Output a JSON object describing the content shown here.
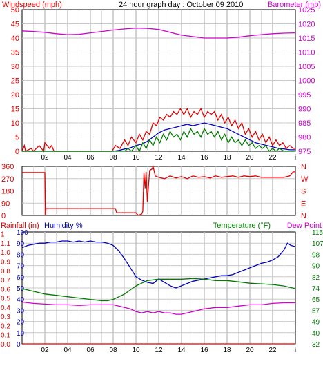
{
  "colors": {
    "red": "#e00000",
    "blue": "#0000c0",
    "green": "#007a00",
    "magenta": "#d000d0",
    "grid": "#c8c8c8",
    "axis": "#000000"
  },
  "chart_data": [
    {
      "type": "line",
      "title": "24 hour graph day : October 09 2010",
      "ylabel_left": "Windspeed (mph)",
      "ylabel_right": "Barometer (mb)",
      "x_ticks": [
        "02",
        "04",
        "06",
        "08",
        "10",
        "12",
        "14",
        "16",
        "18",
        "20",
        "22",
        "i"
      ],
      "xlim": [
        0,
        24
      ],
      "y_left_ticks": [
        "0",
        "5",
        "10",
        "15",
        "20",
        "25",
        "30",
        "35",
        "40",
        "45",
        "50"
      ],
      "ylim_left": [
        0,
        50
      ],
      "y_right_ticks": [
        "975",
        "980",
        "985",
        "990",
        "995",
        "1000",
        "1005",
        "1010",
        "1015",
        "1020",
        "1025"
      ],
      "ylim_right": [
        975,
        1025
      ],
      "grid": true,
      "series": [
        {
          "color": "red",
          "axis": "left",
          "x": [
            0,
            0.2,
            0.3,
            0.8,
            1.0,
            1.5,
            1.9,
            2.0,
            2.4,
            2.6,
            2.8,
            3,
            4,
            5,
            6,
            7,
            7.9,
            8.2,
            8.6,
            9,
            9.3,
            9.6,
            10,
            10.3,
            10.6,
            10.9,
            11.2,
            11.5,
            11.8,
            12.1,
            12.4,
            12.7,
            13,
            13.3,
            13.6,
            13.9,
            14.2,
            14.5,
            14.8,
            15.1,
            15.4,
            15.7,
            16,
            16.3,
            16.6,
            16.9,
            17.2,
            17.5,
            17.8,
            18.1,
            18.4,
            18.7,
            19,
            19.3,
            19.6,
            19.9,
            20.2,
            20.5,
            20.8,
            21.1,
            21.4,
            21.7,
            22,
            22.3,
            22.6,
            22.9,
            23.2,
            23.5,
            23.8,
            24
          ],
          "y": [
            0,
            2,
            0,
            1,
            0,
            2,
            0,
            3,
            1,
            2,
            0,
            0,
            0,
            0,
            0,
            0,
            0,
            2,
            1,
            4,
            2,
            5,
            3,
            6,
            4,
            7,
            6,
            10,
            9,
            12,
            11,
            13,
            12,
            14,
            13,
            15,
            13,
            15,
            12,
            14,
            13,
            15,
            12,
            14,
            13,
            14,
            11,
            13,
            10,
            12,
            9,
            11,
            8,
            10,
            6,
            8,
            5,
            7,
            4,
            6,
            3,
            5,
            2,
            4,
            2,
            3,
            1,
            2,
            1,
            1
          ]
        },
        {
          "color": "blue",
          "axis": "left",
          "x": [
            0,
            7.5,
            8,
            8.5,
            9,
            9.5,
            10,
            10.5,
            11,
            11.5,
            12,
            12.5,
            13,
            13.5,
            14,
            14.5,
            15,
            15.5,
            16,
            16.5,
            17,
            17.5,
            18,
            18.5,
            19,
            19.5,
            20,
            20.5,
            21,
            21.5,
            22,
            22.5,
            23,
            23.5,
            24
          ],
          "y": [
            0,
            0,
            0,
            0.3,
            0.8,
            1.2,
            2,
            2.5,
            3.5,
            5,
            6.5,
            7.5,
            8,
            8.5,
            9,
            9.5,
            9,
            9.5,
            10,
            9.5,
            9,
            8.5,
            8,
            7,
            6,
            5,
            4,
            3,
            2.5,
            2,
            1.5,
            1,
            0.8,
            0.5,
            0.5
          ]
        },
        {
          "color": "green",
          "axis": "left",
          "x": [
            0,
            9,
            9.3,
            9.6,
            10,
            10.3,
            10.6,
            10.9,
            11.2,
            11.5,
            11.8,
            12.1,
            12.4,
            12.7,
            13,
            13.3,
            13.6,
            13.9,
            14.2,
            14.5,
            14.8,
            15.1,
            15.4,
            15.7,
            16,
            16.3,
            16.6,
            16.9,
            17.2,
            17.5,
            17.8,
            18.1,
            18.4,
            18.7,
            19,
            19.3,
            19.6,
            19.9,
            20.2,
            20.5,
            20.8,
            21.1,
            21.4,
            21.7,
            22,
            22.3,
            22.6,
            23,
            23.5,
            24
          ],
          "y": [
            0,
            0,
            1,
            0,
            2,
            0,
            3,
            1,
            4,
            2,
            5,
            3,
            6,
            4,
            7,
            5,
            6,
            4,
            7,
            5,
            8,
            6,
            7,
            5,
            8,
            6,
            7,
            5,
            7,
            4,
            6,
            3,
            5,
            3,
            4,
            2,
            4,
            2,
            3,
            1,
            2,
            1,
            2,
            0,
            1,
            0,
            1,
            0,
            0,
            0
          ]
        },
        {
          "color": "magenta",
          "axis": "right",
          "x": [
            0,
            1,
            2,
            3,
            4,
            5,
            6,
            7,
            8,
            9,
            10,
            11,
            12,
            13,
            14,
            15,
            16,
            17,
            18,
            19,
            20,
            21,
            22,
            23,
            24
          ],
          "y": [
            1017.5,
            1017.3,
            1017,
            1016.5,
            1016.2,
            1016.3,
            1016.8,
            1017.3,
            1017.8,
            1018.2,
            1018.5,
            1018.4,
            1018,
            1017,
            1016,
            1015.5,
            1015,
            1015,
            1015,
            1015.3,
            1015.8,
            1016.2,
            1016.5,
            1016.7,
            1016.8
          ]
        }
      ]
    },
    {
      "type": "line",
      "title": "",
      "x_ticks": [],
      "xlim": [
        0,
        24
      ],
      "y_left_ticks": [
        "360",
        "270",
        "180",
        "90",
        "0"
      ],
      "ylim_left": [
        0,
        360
      ],
      "y_right_ticks": [
        "N",
        "W",
        "S",
        "E",
        "N"
      ],
      "grid": true,
      "series": [
        {
          "color": "red",
          "axis": "left",
          "x": [
            0,
            2,
            2.05,
            2.1,
            8.2,
            8.3,
            10.0,
            10.2,
            10.5,
            10.6,
            10.7,
            10.8,
            10.9,
            11.0,
            11.2,
            11.4,
            11.5,
            11.7,
            12,
            12.5,
            13,
            13.5,
            14,
            14.5,
            15,
            15.5,
            16,
            16.5,
            17,
            17.5,
            18,
            18.5,
            19,
            19.5,
            20,
            20.5,
            21,
            21.5,
            22,
            22.5,
            23,
            23.5,
            23.8,
            24
          ],
          "y": [
            315,
            315,
            0,
            50,
            50,
            20,
            20,
            0,
            10,
            30,
            315,
            200,
            320,
            100,
            330,
            340,
            360,
            290,
            280,
            270,
            290,
            275,
            285,
            270,
            290,
            280,
            285,
            275,
            290,
            280,
            285,
            290,
            280,
            290,
            285,
            290,
            280,
            280,
            280,
            280,
            280,
            290,
            320,
            320
          ]
        }
      ]
    },
    {
      "type": "line",
      "title": "",
      "ylabel_left_1": "Rainfall (in)",
      "ylabel_left_2": "Humidity %",
      "ylabel_right_1": "Temperature (°F)",
      "ylabel_right_2": "Dew Point",
      "x_ticks": [
        "02",
        "04",
        "06",
        "08",
        "10",
        "12",
        "14",
        "16",
        "18",
        "20",
        "22",
        "i"
      ],
      "xlim": [
        0,
        24
      ],
      "y_rain_ticks": [
        "0.0",
        "0.1",
        "0.2",
        "0.3",
        "0.4",
        "0.5",
        "0.6",
        "0.7",
        "0.8",
        "0.9",
        "1.0",
        "1.1",
        "1"
      ],
      "ylim_rain": [
        0,
        1.2
      ],
      "y_humidity_ticks": [
        "0",
        "10",
        "20",
        "30",
        "40",
        "50",
        "60",
        "70",
        "80",
        "90",
        "100"
      ],
      "ylim_humidity": [
        0,
        100
      ],
      "y_right_ticks": [
        "32",
        "40",
        "49",
        "57",
        "65",
        "74",
        "82",
        "90",
        "98",
        "107",
        "115"
      ],
      "ylim_right": [
        32,
        115
      ],
      "grid": true,
      "series": [
        {
          "color": "blue",
          "axis": "humidity",
          "x": [
            0,
            0.5,
            1,
            1.5,
            2,
            2.5,
            3,
            3.5,
            4,
            4.5,
            5,
            5.5,
            6,
            6.5,
            7,
            7.5,
            8,
            8.5,
            9,
            9.5,
            10,
            10.5,
            11,
            11.5,
            12,
            12.5,
            13,
            13.5,
            14,
            14.5,
            15,
            15.5,
            16,
            16.5,
            17,
            17.5,
            18,
            18.5,
            19,
            19.5,
            20,
            20.5,
            21,
            21.5,
            22,
            22.5,
            23,
            23.3,
            23.6,
            24
          ],
          "y": [
            86,
            88,
            89,
            90,
            90,
            91,
            91,
            92,
            92,
            91,
            92,
            91,
            92,
            91,
            91,
            90,
            88,
            83,
            76,
            68,
            60,
            57,
            55,
            54,
            58,
            55,
            52,
            50,
            52,
            54,
            56,
            57,
            58,
            59,
            60,
            61,
            61,
            62,
            64,
            66,
            68,
            70,
            72,
            73,
            75,
            78,
            84,
            90,
            88,
            87
          ]
        },
        {
          "color": "green",
          "axis": "right",
          "x": [
            0,
            1,
            2,
            3,
            4,
            5,
            6,
            7,
            7.5,
            8,
            8.5,
            9,
            9.5,
            10,
            10.5,
            11,
            11.5,
            12,
            13,
            14,
            15,
            16,
            17,
            18,
            19,
            20,
            21,
            22,
            23,
            24
          ],
          "y": [
            73,
            71,
            69,
            68,
            67,
            66,
            65,
            64,
            64,
            65,
            67,
            69,
            72,
            75,
            77,
            79,
            79.5,
            80,
            80,
            80,
            80.5,
            80,
            79,
            79,
            78,
            77,
            76.5,
            76,
            75,
            73
          ]
        },
        {
          "color": "magenta",
          "axis": "right",
          "x": [
            0,
            1,
            2,
            3,
            4,
            5,
            6,
            7,
            8,
            8.5,
            9,
            9.5,
            10,
            10.5,
            11,
            11.5,
            12,
            12.5,
            13,
            13.5,
            14,
            15,
            16,
            17,
            18,
            19,
            20,
            21,
            22,
            23,
            24
          ],
          "y": [
            63,
            62,
            61.5,
            61,
            61,
            60.5,
            61,
            61,
            61,
            60,
            59,
            58,
            56,
            55,
            56,
            55,
            56,
            55,
            55,
            54,
            54,
            56,
            58,
            59,
            59,
            60,
            61,
            61,
            62,
            62.5,
            62.5
          ]
        },
        {
          "color": "red",
          "axis": "rain",
          "x": [
            0,
            24
          ],
          "y": [
            0,
            0
          ]
        }
      ]
    }
  ]
}
